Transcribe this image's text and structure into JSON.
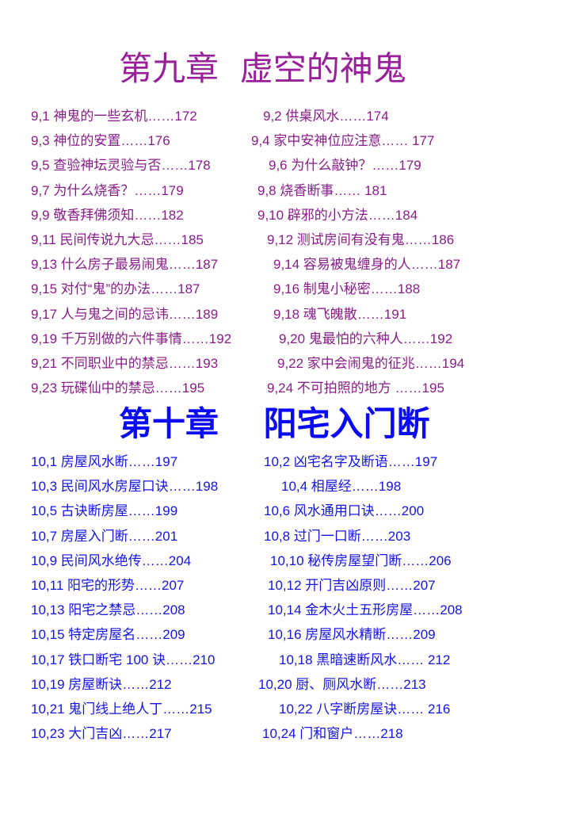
{
  "chapter9": {
    "title": "第九章  虚空的神鬼",
    "color": "#8a1c8a",
    "rows": [
      [
        "9,1 神鬼的一些玄机……172",
        "9,2 供桌风水……174"
      ],
      [
        "9,3 神位的安置……176",
        "9,4 家中安神位应注意…… 177"
      ],
      [
        "9,5 查验神坛灵验与否……178",
        "9,6 为什么敲钟？……179"
      ],
      [
        "9,7 为什么烧香？……179",
        "9,8 烧香断事…… 181"
      ],
      [
        "9,9 敬香拜佛须知……182",
        "9,10 辟邪的小方法……184"
      ],
      [
        "9,11 民间传说九大忌……185",
        "9,12 测试房间有没有鬼……186"
      ],
      [
        "9,13 什么房子最易闹鬼……187",
        "9,14 容易被鬼缠身的人……187"
      ],
      [
        "9,15 对付“鬼”的办法……187",
        "9,16 制鬼小秘密……188"
      ],
      [
        "9,17 人与鬼之间的忌讳……189",
        "9,18 魂飞魄散……191"
      ],
      [
        "9,19 千万别做的六件事情……192",
        "9,20 鬼最怕的六种人……192"
      ],
      [
        "9,21 不同职业中的禁忌……193",
        "9,22 家中会闹鬼的征兆……194"
      ],
      [
        "9,23 玩碟仙中的禁忌……195",
        "9,24 不可拍照的地方 ……195"
      ]
    ]
  },
  "chapter10": {
    "title": "第十章　 阳宅入门断",
    "color": "#1414e6",
    "rows": [
      [
        "10,1 房屋风水断……197",
        "10,2 凶宅名字及断语……197"
      ],
      [
        "10,3 民间风水房屋口诀……198",
        "10,4 相屋经……198"
      ],
      [
        "10,5 古诀断房屋……199",
        "10,6 风水通用口诀……200"
      ],
      [
        "10,7 房屋入门断……201",
        "10,8 过门一口断……203"
      ],
      [
        "10,9 民间风水绝传……204",
        "10,10 秘传房屋望门断……206"
      ],
      [
        "10,11 阳宅的形势……207",
        "10,12 开门吉凶原则……207"
      ],
      [
        "10,13 阳宅之禁忌……208",
        "10,14 金木火土五形房屋……208"
      ],
      [
        "10,15 特定房屋名……209",
        "10,16 房屋风水精断……209"
      ],
      [
        "10,17 铁口断宅 100 诀……210",
        "10,18 黑暗速断风水…… 212"
      ],
      [
        "10,19 房屋断诀……212",
        "10,20 厨、厕风水断……213"
      ],
      [
        "10,21 鬼门线上绝人丁……215",
        "10,22 八字断房屋诀…… 216"
      ],
      [
        "10,23 大门吉凶……217",
        "10,24 门和窗户……218"
      ]
    ]
  }
}
